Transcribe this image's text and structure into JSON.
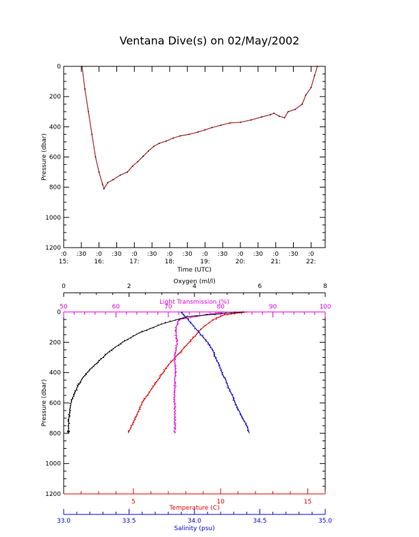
{
  "title": "Ventana Dive(s) on 02/May/2002",
  "colors": {
    "axis": "#000000",
    "track": "#aa2222",
    "temperature": "#dd0000",
    "salinity": "#0000cc",
    "light": "#dd00dd",
    "oxygen": "#000000"
  },
  "chart_data": [
    {
      "type": "line",
      "title": "Ventana Dive(s) on 02/May/2002",
      "xlabel": "Time (UTC)",
      "ylabel": "Pressure (dbar)",
      "ylim": [
        1200,
        0
      ],
      "yticks": [
        0,
        200,
        400,
        600,
        800,
        1000,
        1200
      ],
      "xlim": [
        15.0,
        22.4
      ],
      "xticks": [
        {
          "t": 15.0,
          "minute": ":0",
          "hour": "15:"
        },
        {
          "t": 15.5,
          "minute": ":30",
          "hour": ""
        },
        {
          "t": 16.0,
          "minute": ":0",
          "hour": "16:"
        },
        {
          "t": 16.5,
          "minute": ":30",
          "hour": ""
        },
        {
          "t": 17.0,
          "minute": ":0",
          "hour": "17:"
        },
        {
          "t": 17.5,
          "minute": ":30",
          "hour": ""
        },
        {
          "t": 18.0,
          "minute": ":0",
          "hour": "18:"
        },
        {
          "t": 18.5,
          "minute": ":30",
          "hour": ""
        },
        {
          "t": 19.0,
          "minute": ":0",
          "hour": "19:"
        },
        {
          "t": 19.5,
          "minute": ":30",
          "hour": ""
        },
        {
          "t": 20.0,
          "minute": ":0",
          "hour": "20:"
        },
        {
          "t": 20.5,
          "minute": ":30",
          "hour": ""
        },
        {
          "t": 21.0,
          "minute": ":0",
          "hour": "21:"
        },
        {
          "t": 21.5,
          "minute": ":30",
          "hour": ""
        },
        {
          "t": 22.0,
          "minute": ":0",
          "hour": "22:"
        }
      ],
      "series": [
        {
          "points": [
            [
              15.52,
              0
            ],
            [
              15.6,
              150
            ],
            [
              15.7,
              300
            ],
            [
              15.8,
              450
            ],
            [
              15.9,
              600
            ],
            [
              16.0,
              700
            ],
            [
              16.1,
              780
            ],
            [
              16.14,
              810
            ],
            [
              16.25,
              770
            ],
            [
              16.4,
              750
            ],
            [
              16.6,
              720
            ],
            [
              16.8,
              700
            ],
            [
              16.95,
              660
            ],
            [
              17.1,
              630
            ],
            [
              17.25,
              595
            ],
            [
              17.4,
              560
            ],
            [
              17.55,
              530
            ],
            [
              17.7,
              510
            ],
            [
              17.9,
              495
            ],
            [
              18.1,
              475
            ],
            [
              18.3,
              460
            ],
            [
              18.55,
              450
            ],
            [
              18.8,
              435
            ],
            [
              19.0,
              420
            ],
            [
              19.2,
              405
            ],
            [
              19.45,
              390
            ],
            [
              19.7,
              375
            ],
            [
              20.0,
              370
            ],
            [
              20.3,
              355
            ],
            [
              20.6,
              335
            ],
            [
              20.85,
              320
            ],
            [
              20.95,
              310
            ],
            [
              21.1,
              330
            ],
            [
              21.25,
              340
            ],
            [
              21.35,
              300
            ],
            [
              21.55,
              285
            ],
            [
              21.75,
              250
            ],
            [
              21.85,
              190
            ],
            [
              22.0,
              140
            ],
            [
              22.1,
              60
            ],
            [
              22.18,
              0
            ]
          ]
        }
      ]
    },
    {
      "type": "scatter",
      "ylabel": "Pressure (dbar)",
      "ylim": [
        1200,
        0
      ],
      "yticks": [
        0,
        200,
        400,
        600,
        800,
        1000,
        1200
      ],
      "axes": {
        "oxygen": {
          "label": "Oxygen (ml/l)",
          "range": [
            0,
            8
          ],
          "ticks": [
            0,
            2,
            4,
            6,
            8
          ]
        },
        "light": {
          "label": "Light Transmission (%)",
          "range": [
            50,
            100
          ],
          "ticks": [
            50,
            60,
            70,
            80,
            90,
            100
          ]
        },
        "temperature": {
          "label": "Temperature (C)",
          "range": [
            1,
            16
          ],
          "ticks": [
            5,
            10,
            15
          ]
        },
        "salinity": {
          "label": "Salinity (psu)",
          "range": [
            33.0,
            35.0
          ],
          "ticks": [
            "33.0",
            "33.5",
            "34.0",
            "34.5",
            "35.0"
          ]
        }
      },
      "series": [
        {
          "axis": "temperature",
          "color": "#dd0000",
          "points": [
            [
              11.5,
              0
            ],
            [
              10.2,
              20
            ],
            [
              9.6,
              50
            ],
            [
              9.0,
              100
            ],
            [
              8.6,
              150
            ],
            [
              8.2,
              200
            ],
            [
              7.8,
              250
            ],
            [
              7.4,
              300
            ],
            [
              7.0,
              350
            ],
            [
              6.7,
              400
            ],
            [
              6.4,
              450
            ],
            [
              6.1,
              500
            ],
            [
              5.8,
              550
            ],
            [
              5.5,
              600
            ],
            [
              5.3,
              650
            ],
            [
              5.1,
              700
            ],
            [
              4.9,
              750
            ],
            [
              4.7,
              800
            ]
          ]
        },
        {
          "axis": "salinity",
          "color": "#0000cc",
          "points": [
            [
              33.9,
              0
            ],
            [
              33.95,
              50
            ],
            [
              34.0,
              100
            ],
            [
              34.05,
              150
            ],
            [
              34.1,
              200
            ],
            [
              34.14,
              250
            ],
            [
              34.16,
              300
            ],
            [
              34.19,
              350
            ],
            [
              34.21,
              400
            ],
            [
              34.24,
              450
            ],
            [
              34.26,
              500
            ],
            [
              34.29,
              550
            ],
            [
              34.31,
              600
            ],
            [
              34.34,
              650
            ],
            [
              34.37,
              700
            ],
            [
              34.4,
              750
            ],
            [
              34.42,
              800
            ]
          ]
        },
        {
          "axis": "light",
          "color": "#dd00dd",
          "points": [
            [
              81,
              0
            ],
            [
              77,
              20
            ],
            [
              72,
              50
            ],
            [
              71.5,
              100
            ],
            [
              71.5,
              150
            ],
            [
              71.7,
              200
            ],
            [
              71.5,
              250
            ],
            [
              71.2,
              300
            ],
            [
              71.3,
              350
            ],
            [
              71.4,
              400
            ],
            [
              71.2,
              450
            ],
            [
              71.3,
              500
            ],
            [
              71.2,
              550
            ],
            [
              71.2,
              600
            ],
            [
              71.3,
              650
            ],
            [
              71.2,
              700
            ],
            [
              71.3,
              750
            ],
            [
              71.2,
              800
            ]
          ]
        },
        {
          "axis": "oxygen",
          "color": "#000000",
          "points": [
            [
              5.5,
              0
            ],
            [
              3.8,
              30
            ],
            [
              3.0,
              80
            ],
            [
              2.3,
              140
            ],
            [
              1.8,
              200
            ],
            [
              1.4,
              260
            ],
            [
              1.1,
              320
            ],
            [
              0.8,
              380
            ],
            [
              0.6,
              430
            ],
            [
              0.45,
              480
            ],
            [
              0.35,
              530
            ],
            [
              0.25,
              580
            ],
            [
              0.2,
              630
            ],
            [
              0.17,
              680
            ],
            [
              0.15,
              730
            ],
            [
              0.15,
              780
            ],
            [
              0.15,
              800
            ]
          ]
        }
      ]
    }
  ]
}
